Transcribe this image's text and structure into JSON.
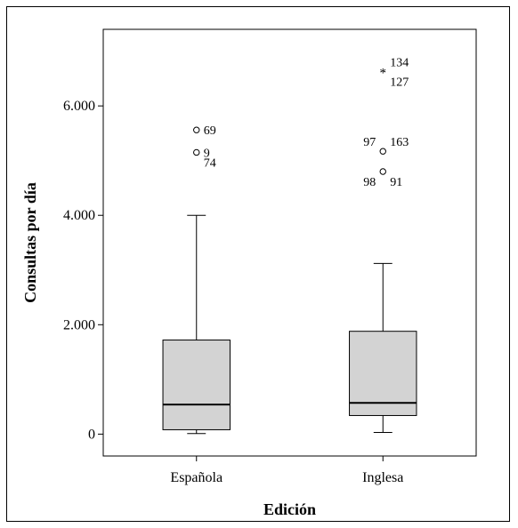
{
  "chart_data": {
    "type": "boxplot",
    "xlabel": "Edición",
    "ylabel": "Consultas por día",
    "ylim": [
      -400,
      7400
    ],
    "yticks": [
      0,
      2000,
      4000,
      6000
    ],
    "ytick_labels": [
      "0",
      "2.000",
      "4.000",
      "6.000"
    ],
    "categories": [
      "Española",
      "Inglesa"
    ],
    "box_fill": "#d3d3d3",
    "boxes": [
      {
        "category": "Española",
        "whisker_low": 10,
        "q1": 80,
        "median": 540,
        "q3": 1720,
        "whisker_high": 4000,
        "outliers": [
          {
            "value": 5560,
            "marker": "circle",
            "label": "69",
            "label_side": "right"
          },
          {
            "value": 5150,
            "marker": "circle",
            "label": "9",
            "label_side": "right"
          },
          {
            "value": 5150,
            "marker": "none",
            "label": "74",
            "label_side": "right",
            "label_offset": -1
          },
          {
            "value": 5150,
            "marker": "none",
            "label": "",
            "label_side": "right"
          }
        ]
      },
      {
        "category": "Inglesa",
        "whisker_low": 30,
        "q1": 340,
        "median": 570,
        "q3": 1880,
        "whisker_high": 3120,
        "outliers": [
          {
            "value": 6630,
            "marker": "star",
            "label": "134",
            "label_side": "right",
            "label_offset": 1
          },
          {
            "value": 6630,
            "marker": "none",
            "label": "127",
            "label_side": "right",
            "label_offset": -1
          },
          {
            "value": 5170,
            "marker": "circle",
            "label": "97",
            "label_side": "left",
            "label_offset": 1
          },
          {
            "value": 5170,
            "marker": "none",
            "label": "163",
            "label_side": "right",
            "label_offset": 1
          },
          {
            "value": 4800,
            "marker": "circle",
            "label": "98",
            "label_side": "left",
            "label_offset": -1
          },
          {
            "value": 4800,
            "marker": "none",
            "label": "91",
            "label_side": "right",
            "label_offset": -1
          }
        ]
      }
    ]
  }
}
